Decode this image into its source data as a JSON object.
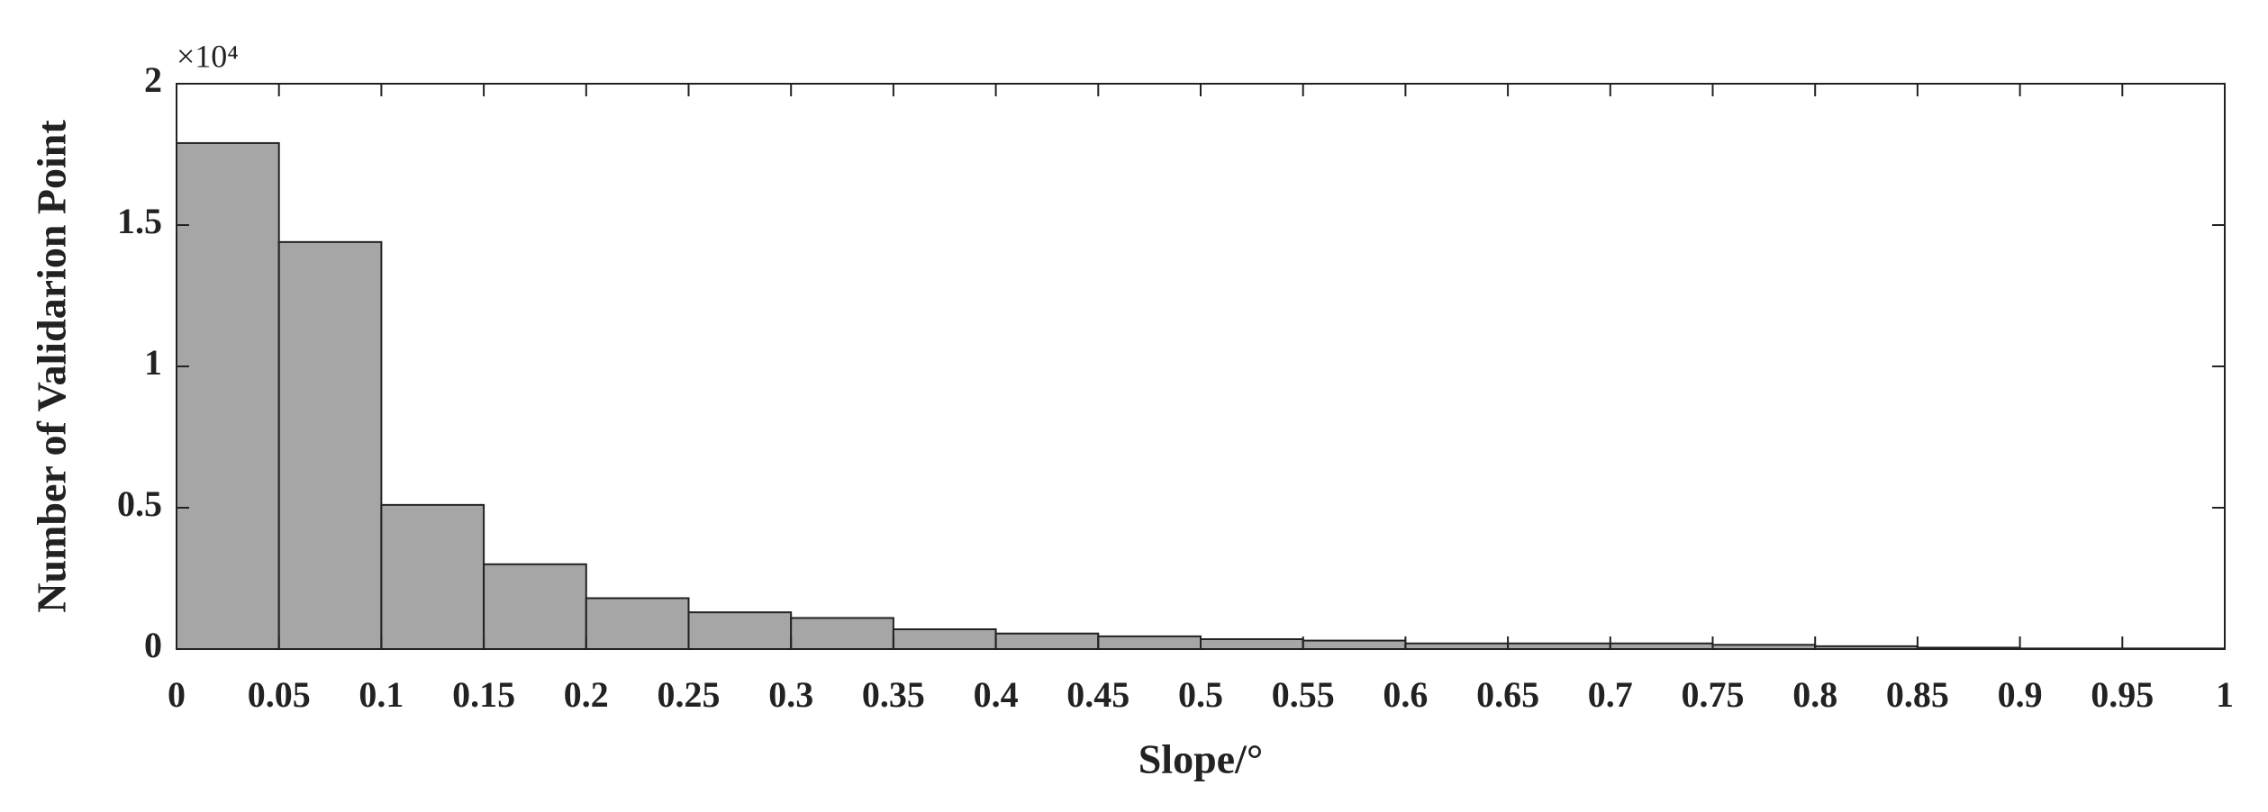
{
  "chart_data": {
    "type": "histogram",
    "x_label": "Slope/°",
    "y_label": "Number of Validarion Point",
    "y_multiplier": "×10⁴",
    "bins": [
      0,
      0.05,
      0.1,
      0.15,
      0.2,
      0.25,
      0.3,
      0.35,
      0.4,
      0.45,
      0.5,
      0.55,
      0.6,
      0.65,
      0.7,
      0.75,
      0.8,
      0.85,
      0.9,
      0.95,
      1
    ],
    "values": [
      1.79,
      1.44,
      0.51,
      0.3,
      0.18,
      0.13,
      0.11,
      0.07,
      0.055,
      0.045,
      0.035,
      0.03,
      0.02,
      0.02,
      0.02,
      0.015,
      0.01,
      0.005,
      0.002,
      0.002
    ],
    "color": "#a6a6a6",
    "xlim": [
      0,
      1
    ],
    "xticks": [
      0,
      0.05,
      0.1,
      0.15,
      0.2,
      0.25,
      0.3,
      0.35,
      0.4,
      0.45,
      0.5,
      0.55,
      0.6,
      0.65,
      0.7,
      0.75,
      0.8,
      0.85,
      0.9,
      0.95,
      1
    ],
    "ylim": [
      0,
      2
    ],
    "yticks": [
      0,
      0.5,
      1,
      1.5,
      2
    ],
    "grid": false
  }
}
